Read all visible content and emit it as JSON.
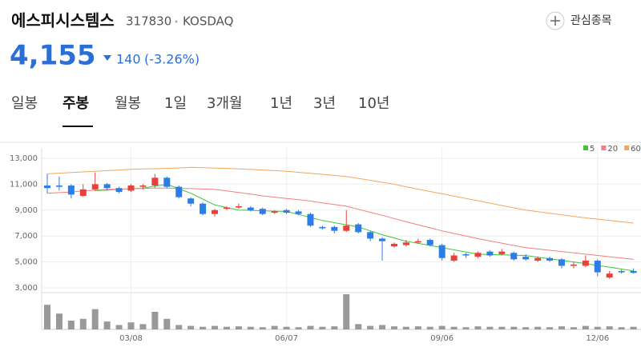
{
  "header": {
    "name": "에스피시스템스",
    "code": "317830",
    "market": "KOSDAQ",
    "watch_button": "관심종목",
    "price": "4,155",
    "change": "140",
    "change_rate": "(-3.26%)"
  },
  "tabs": {
    "items": [
      "일봉",
      "주봉",
      "월봉",
      "1일",
      "3개월",
      "1년",
      "3년",
      "10년"
    ],
    "selected": 1
  },
  "chart_data": {
    "type": "candlestick",
    "categories": [
      null,
      null,
      null,
      null,
      null,
      null,
      null,
      "03/08",
      null,
      null,
      null,
      null,
      null,
      null,
      null,
      null,
      null,
      null,
      null,
      null,
      "06/07",
      null,
      null,
      null,
      null,
      null,
      null,
      null,
      null,
      null,
      null,
      null,
      null,
      "09/06",
      null,
      null,
      null,
      null,
      null,
      null,
      null,
      null,
      null,
      null,
      null,
      null,
      "12/06",
      null,
      null,
      null
    ],
    "open": [
      10900,
      10900,
      10900,
      10100,
      10600,
      11000,
      10700,
      10500,
      10800,
      10900,
      11500,
      10800,
      9900,
      9500,
      8700,
      9100,
      9200,
      9200,
      9100,
      8800,
      9000,
      8900,
      8700,
      7700,
      7700,
      7400,
      7900,
      7300,
      6800,
      6200,
      6300,
      6500,
      6700,
      6300,
      5100,
      5600,
      5400,
      5800,
      5600,
      5700,
      5400,
      5100,
      5300,
      5200,
      4700,
      4700,
      5100,
      3800,
      4300,
      4300
    ],
    "high": [
      11800,
      11600,
      11000,
      11000,
      11900,
      11100,
      10800,
      11000,
      11000,
      11800,
      11600,
      10900,
      10000,
      9600,
      9100,
      9300,
      9500,
      9300,
      9200,
      9000,
      9100,
      9000,
      8800,
      7800,
      7800,
      9000,
      8000,
      7400,
      6900,
      6500,
      6700,
      6800,
      6800,
      6400,
      5700,
      5700,
      5800,
      5900,
      6000,
      5800,
      5600,
      5400,
      5400,
      5300,
      5000,
      5500,
      5200,
      4300,
      4400,
      4500
    ],
    "low": [
      10300,
      10500,
      9900,
      10000,
      10500,
      10500,
      10300,
      10400,
      10600,
      10700,
      10700,
      9900,
      9300,
      8600,
      8500,
      9000,
      9100,
      8900,
      8600,
      8700,
      8700,
      8600,
      7700,
      7500,
      7200,
      7300,
      7200,
      6600,
      5100,
      6100,
      6200,
      6400,
      6200,
      5100,
      5000,
      5300,
      5300,
      5400,
      5500,
      5100,
      5100,
      5000,
      5000,
      4500,
      4500,
      4600,
      3900,
      3700,
      4100,
      4100
    ],
    "close": [
      10700,
      10800,
      10200,
      10600,
      11000,
      10700,
      10400,
      10900,
      10900,
      11500,
      10800,
      10000,
      9500,
      8700,
      9000,
      9200,
      9300,
      9000,
      8700,
      8900,
      8800,
      8700,
      7800,
      7600,
      7400,
      7800,
      7300,
      6800,
      6600,
      6400,
      6500,
      6600,
      6300,
      5300,
      5500,
      5500,
      5700,
      5500,
      5800,
      5200,
      5200,
      5300,
      5100,
      4700,
      4800,
      5100,
      4200,
      4100,
      4200,
      4155
    ],
    "up_color": "#e8403a",
    "down_color": "#2c7ee6",
    "series": [
      {
        "name": "5",
        "color": "#3ec43e",
        "values": [
          null,
          null,
          null,
          null,
          10500,
          10550,
          10600,
          10650,
          10700,
          10850,
          11000,
          10650,
          10300,
          9850,
          9400,
          9200,
          9000,
          8980,
          8950,
          8920,
          8900,
          8660,
          8430,
          8200,
          8030,
          7870,
          7700,
          7400,
          7100,
          6850,
          6600,
          6430,
          6270,
          6100,
          5930,
          5770,
          5600,
          5570,
          5550,
          5520,
          5500,
          5370,
          5250,
          5120,
          5000,
          4870,
          4730,
          4600,
          4450,
          4300
        ]
      },
      {
        "name": "20",
        "color": "#f07f7f",
        "values": [
          10300,
          10350,
          10400,
          10480,
          10540,
          10600,
          10620,
          10650,
          10680,
          10700,
          10700,
          10680,
          10660,
          10630,
          10600,
          10480,
          10360,
          10240,
          10100,
          10000,
          9900,
          9800,
          9700,
          9560,
          9430,
          9300,
          9070,
          8830,
          8600,
          8350,
          8100,
          7870,
          7630,
          7400,
          7200,
          7000,
          6800,
          6620,
          6450,
          6270,
          6100,
          6000,
          5900,
          5800,
          5700,
          5600,
          5500,
          5400,
          5300,
          5200
        ]
      },
      {
        "name": "60",
        "color": "#f0a860",
        "values": [
          11800,
          11850,
          11900,
          11950,
          12000,
          12050,
          12100,
          12150,
          12180,
          12200,
          12220,
          12260,
          12300,
          12280,
          12250,
          12220,
          12180,
          12140,
          12100,
          12050,
          12000,
          11920,
          11840,
          11760,
          11680,
          11600,
          11450,
          11300,
          11150,
          11000,
          10800,
          10620,
          10440,
          10260,
          10080,
          9900,
          9720,
          9540,
          9360,
          9180,
          9000,
          8880,
          8760,
          8640,
          8520,
          8400,
          8300,
          8200,
          8100,
          8000
        ]
      }
    ],
    "volume": [
      280,
      180,
      100,
      120,
      230,
      90,
      50,
      80,
      60,
      200,
      120,
      50,
      40,
      30,
      40,
      30,
      35,
      30,
      25,
      40,
      30,
      25,
      40,
      30,
      35,
      400,
      60,
      40,
      50,
      35,
      30,
      35,
      30,
      40,
      30,
      25,
      35,
      30,
      30,
      30,
      25,
      30,
      25,
      35,
      25,
      40,
      30,
      35,
      25,
      30
    ],
    "volume_color": "#999999",
    "ylim": [
      3000,
      13000
    ],
    "yticks": [
      {
        "value": 3000,
        "label": "3,000"
      },
      {
        "value": 5000,
        "label": "5,000"
      },
      {
        "value": 7000,
        "label": "7,000"
      },
      {
        "value": 9000,
        "label": "9,000"
      },
      {
        "value": 11000,
        "label": "11,000"
      },
      {
        "value": 13000,
        "label": "13,000"
      }
    ],
    "grid": true,
    "legend": "top-right"
  }
}
